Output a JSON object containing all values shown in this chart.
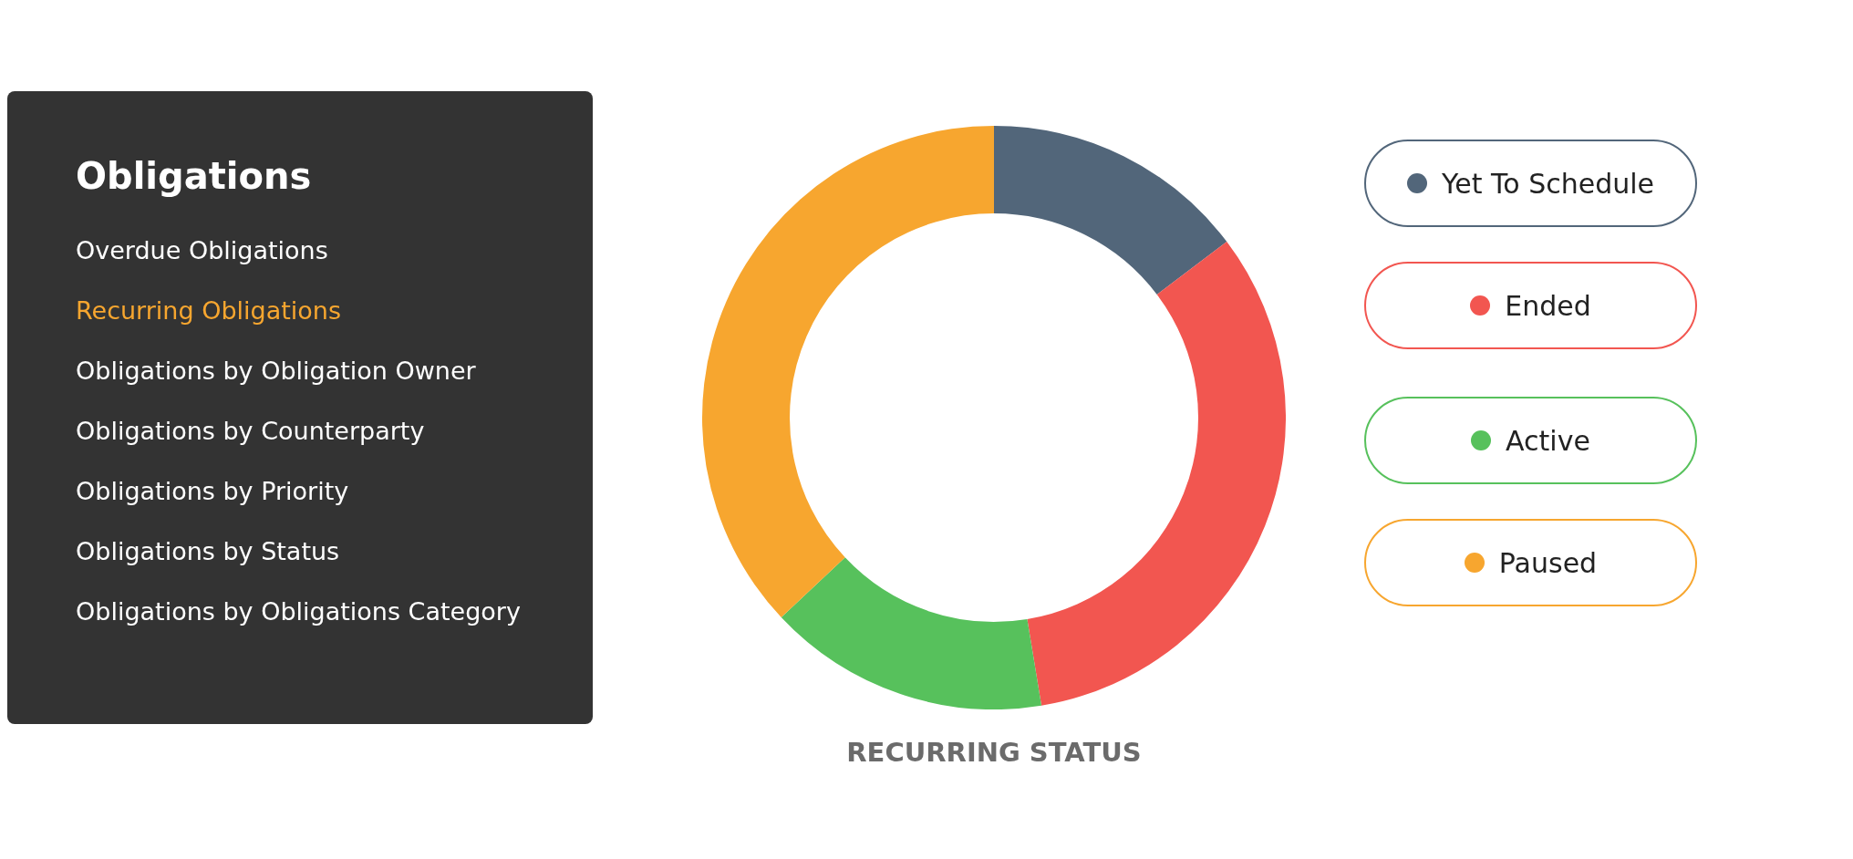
{
  "chart_data": [
    {
      "type": "other",
      "title": "Obligations",
      "annotations": [
        "Overdue Obligations",
        "Recurring Obligations",
        "Obligations by Obligation Owner",
        "Obligations by Counterparty",
        "Obligations by Priority",
        "Obligations by Status",
        "Obligations by Obligations Category"
      ]
    },
    {
      "type": "donut",
      "title": "RECURRING STATUS",
      "categories": [
        "Yet To Schedule",
        "Ended",
        "Active",
        "Paused"
      ],
      "values": [
        14.7,
        32.7,
        15.6,
        37
      ],
      "colors": [
        "#52667a",
        "#f25650",
        "#57c15c",
        "#f7a62f"
      ],
      "legend": "right"
    }
  ]
}
